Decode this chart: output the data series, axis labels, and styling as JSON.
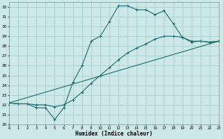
{
  "xlabel": "Humidex (Indice chaleur)",
  "bg_color": "#cce8e8",
  "grid_color": "#aacccc",
  "line_color": "#1a6b6b",
  "xlim": [
    0,
    23
  ],
  "ylim": [
    20,
    32.5
  ],
  "xticks": [
    0,
    1,
    2,
    3,
    4,
    5,
    6,
    7,
    8,
    9,
    10,
    11,
    12,
    13,
    14,
    15,
    16,
    17,
    18,
    19,
    20,
    21,
    22,
    23
  ],
  "yticks": [
    20,
    21,
    22,
    23,
    24,
    25,
    26,
    27,
    28,
    29,
    30,
    31,
    32
  ],
  "curve1_x": [
    0,
    1,
    2,
    3,
    4,
    5,
    6,
    7,
    8,
    9,
    10,
    11,
    12,
    13,
    14,
    15,
    16,
    17,
    18,
    19,
    20,
    21,
    22,
    23
  ],
  "curve1_y": [
    22.2,
    22.1,
    22.1,
    21.7,
    21.7,
    20.5,
    21.7,
    24.3,
    26.0,
    28.5,
    29.0,
    30.5,
    32.1,
    32.1,
    31.7,
    31.7,
    31.2,
    31.6,
    30.3,
    28.9,
    28.4,
    28.5,
    28.4,
    28.5
  ],
  "curve2_x": [
    0,
    1,
    2,
    3,
    4,
    5,
    6,
    7,
    8,
    9,
    10,
    11,
    12,
    13,
    14,
    15,
    16,
    17,
    18,
    19,
    20,
    21,
    22,
    23
  ],
  "curve2_y": [
    22.2,
    22.1,
    22.1,
    22.0,
    22.0,
    21.8,
    22.0,
    22.5,
    23.3,
    24.2,
    25.0,
    25.8,
    26.6,
    27.3,
    27.8,
    28.2,
    28.7,
    29.0,
    29.0,
    28.9,
    28.5,
    28.5,
    28.4,
    28.5
  ],
  "curve3_x": [
    0,
    23
  ],
  "curve3_y": [
    22.2,
    28.5
  ]
}
